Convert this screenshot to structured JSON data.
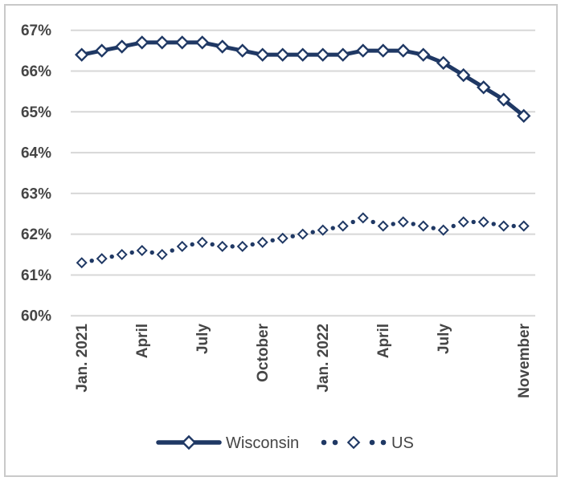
{
  "chart_data": {
    "type": "line",
    "title": "",
    "xlabel": "",
    "ylabel": "",
    "x": [
      "Jan 2021",
      "Feb 2021",
      "Mar 2021",
      "Apr 2021",
      "May 2021",
      "Jun 2021",
      "Jul 2021",
      "Aug 2021",
      "Sep 2021",
      "Oct 2021",
      "Nov 2021",
      "Dec 2021",
      "Jan 2022",
      "Feb 2022",
      "Mar 2022",
      "Apr 2022",
      "May 2022",
      "Jun 2022",
      "Jul 2022",
      "Aug 2022",
      "Sep 2022",
      "Oct 2022",
      "Nov 2022"
    ],
    "x_tick_indices": [
      0,
      3,
      6,
      9,
      12,
      15,
      18,
      22
    ],
    "x_tick_labels": [
      "Jan. 2021",
      "April",
      "July",
      "October",
      "Jan. 2022",
      "April",
      "July",
      "November"
    ],
    "y_tick_labels": [
      "67%",
      "66%",
      "65%",
      "64%",
      "63%",
      "62%",
      "61%",
      "60%"
    ],
    "ylim": [
      60,
      67
    ],
    "grid": true,
    "legend_position": "bottom-center",
    "series": [
      {
        "name": "Wisconsin",
        "line_style": "solid-thick",
        "marker": "diamond",
        "values": [
          66.4,
          66.5,
          66.6,
          66.7,
          66.7,
          66.7,
          66.7,
          66.6,
          66.5,
          66.4,
          66.4,
          66.4,
          66.4,
          66.4,
          66.5,
          66.5,
          66.5,
          66.4,
          66.2,
          65.9,
          65.6,
          65.3,
          64.9
        ]
      },
      {
        "name": "US",
        "line_style": "dotted",
        "marker": "diamond",
        "values": [
          61.3,
          61.4,
          61.5,
          61.6,
          61.5,
          61.7,
          61.8,
          61.7,
          61.7,
          61.8,
          61.9,
          62.0,
          62.1,
          62.2,
          62.4,
          62.2,
          62.3,
          62.2,
          62.1,
          62.3,
          62.3,
          62.2,
          62.2
        ]
      }
    ],
    "colors": {
      "series": "#1f3864",
      "marker_fill": "#ffffff",
      "grid": "#d7d7d7",
      "axis_text": "#454545",
      "legend_text": "#454545",
      "frame": "#c9c9c9",
      "background": "#ffffff"
    }
  }
}
